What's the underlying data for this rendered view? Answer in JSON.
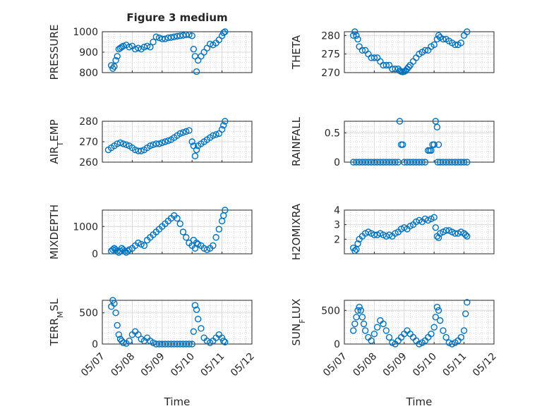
{
  "figure": {
    "title": "Figure 3 medium",
    "marker_color": "#0072BD",
    "xlabel": "Time",
    "x_ticks": [
      "05/07",
      "05/08",
      "05/09",
      "05/10",
      "05/11",
      "05/12"
    ]
  },
  "chart_data": [
    {
      "type": "scatter",
      "ylabel": "PRESSURE",
      "xlim": [
        0,
        5
      ],
      "ylim": [
        800,
        1000
      ],
      "yticks": [
        800,
        900,
        1000
      ],
      "grid": true,
      "x": [
        0.3,
        0.35,
        0.4,
        0.45,
        0.5,
        0.55,
        0.6,
        0.65,
        0.7,
        0.8,
        0.9,
        1.0,
        1.1,
        1.2,
        1.3,
        1.4,
        1.5,
        1.6,
        1.7,
        1.8,
        1.9,
        2.0,
        2.1,
        2.2,
        2.3,
        2.4,
        2.5,
        2.6,
        2.7,
        2.8,
        2.9,
        3.0,
        3.05,
        3.1,
        3.15,
        3.2,
        3.3,
        3.4,
        3.5,
        3.6,
        3.7,
        3.8,
        3.9,
        4.0,
        4.05,
        4.1
      ],
      "y": [
        835,
        820,
        830,
        860,
        880,
        915,
        920,
        925,
        930,
        935,
        925,
        930,
        915,
        920,
        915,
        925,
        930,
        925,
        950,
        975,
        970,
        965,
        965,
        970,
        972,
        975,
        978,
        980,
        982,
        985,
        985,
        980,
        915,
        880,
        805,
        860,
        880,
        900,
        920,
        940,
        935,
        945,
        960,
        980,
        995,
        1000
      ]
    },
    {
      "type": "scatter",
      "ylabel": "THETA",
      "xlim": [
        0,
        5
      ],
      "ylim": [
        270,
        281
      ],
      "yticks": [
        270,
        275,
        280
      ],
      "grid": true,
      "x": [
        0.3,
        0.35,
        0.4,
        0.45,
        0.5,
        0.6,
        0.7,
        0.8,
        0.9,
        1.0,
        1.1,
        1.2,
        1.3,
        1.4,
        1.5,
        1.6,
        1.7,
        1.8,
        1.85,
        1.9,
        1.95,
        2.0,
        2.05,
        2.1,
        2.15,
        2.2,
        2.3,
        2.4,
        2.5,
        2.6,
        2.7,
        2.8,
        2.9,
        3.0,
        3.1,
        3.15,
        3.2,
        3.3,
        3.4,
        3.5,
        3.6,
        3.7,
        3.8,
        3.9,
        4.0,
        4.1
      ],
      "y": [
        280,
        281,
        280,
        279,
        277,
        276,
        276,
        275,
        274,
        274,
        274,
        273,
        272,
        272,
        272,
        271,
        271,
        271,
        270.5,
        270.3,
        270.2,
        270.3,
        270.5,
        271,
        271.5,
        272,
        273,
        274,
        275,
        275.5,
        276,
        276,
        277,
        277.5,
        279,
        280,
        279.5,
        279,
        279,
        278.5,
        278,
        277.5,
        277.5,
        278,
        280,
        281
      ]
    },
    {
      "type": "scatter",
      "ylabel": "AIR_TEMP",
      "xlim": [
        0,
        5
      ],
      "ylim": [
        260,
        280
      ],
      "yticks": [
        260,
        270,
        280
      ],
      "grid": true,
      "x": [
        0.2,
        0.3,
        0.4,
        0.5,
        0.6,
        0.7,
        0.8,
        0.9,
        1.0,
        1.1,
        1.2,
        1.3,
        1.4,
        1.5,
        1.6,
        1.7,
        1.8,
        1.9,
        2.0,
        2.1,
        2.2,
        2.3,
        2.4,
        2.5,
        2.6,
        2.7,
        2.8,
        2.9,
        3.0,
        3.05,
        3.1,
        3.15,
        3.2,
        3.3,
        3.4,
        3.5,
        3.6,
        3.7,
        3.8,
        3.9,
        4.0,
        4.05,
        4.1
      ],
      "y": [
        266,
        267,
        268,
        269,
        269.5,
        269,
        268.5,
        268,
        267,
        266,
        265.5,
        265.5,
        266,
        267,
        268,
        268.5,
        269,
        269,
        269.5,
        270,
        270.5,
        271,
        272,
        273,
        274,
        274.5,
        275,
        275.5,
        270,
        268,
        263,
        266,
        268,
        269,
        270,
        271,
        272,
        273,
        273.5,
        274,
        276,
        278,
        280
      ]
    },
    {
      "type": "scatter",
      "ylabel": "RAINFALL",
      "xlim": [
        0,
        5
      ],
      "ylim": [
        0,
        0.7
      ],
      "yticks": [
        0,
        0.5
      ],
      "grid": true,
      "x": [
        0.3,
        0.4,
        0.5,
        0.6,
        0.7,
        0.8,
        0.9,
        1.0,
        1.1,
        1.2,
        1.3,
        1.4,
        1.5,
        1.6,
        1.7,
        1.8,
        1.85,
        1.9,
        1.95,
        2.0,
        2.1,
        2.2,
        2.3,
        2.4,
        2.5,
        2.6,
        2.7,
        2.8,
        2.85,
        2.9,
        2.95,
        3.0,
        3.05,
        3.1,
        3.12,
        3.15,
        3.2,
        3.3,
        3.4,
        3.5,
        3.6,
        3.7,
        3.8,
        3.9,
        4.0,
        4.1
      ],
      "y": [
        0,
        0,
        0,
        0,
        0,
        0,
        0,
        0,
        0,
        0,
        0,
        0,
        0,
        0,
        0,
        0,
        0.7,
        0.3,
        0.3,
        0,
        0,
        0,
        0,
        0,
        0,
        0,
        0,
        0.2,
        0.2,
        0.2,
        0.3,
        0.3,
        0.7,
        0.6,
        0,
        0.3,
        0,
        0,
        0,
        0,
        0,
        0,
        0,
        0,
        0,
        0
      ]
    },
    {
      "type": "scatter",
      "ylabel": "MIXDEPTH",
      "xlim": [
        0,
        5
      ],
      "ylim": [
        0,
        1600
      ],
      "yticks": [
        0,
        1000
      ],
      "grid": true,
      "x": [
        0.3,
        0.35,
        0.4,
        0.45,
        0.5,
        0.55,
        0.6,
        0.65,
        0.7,
        0.75,
        0.8,
        0.85,
        0.9,
        1.0,
        1.1,
        1.2,
        1.3,
        1.4,
        1.5,
        1.6,
        1.7,
        1.8,
        1.9,
        2.0,
        2.1,
        2.2,
        2.3,
        2.4,
        2.5,
        2.6,
        2.7,
        2.8,
        2.9,
        3.0,
        3.05,
        3.1,
        3.15,
        3.2,
        3.3,
        3.4,
        3.5,
        3.6,
        3.7,
        3.8,
        3.9,
        4.0,
        4.05,
        4.1
      ],
      "y": [
        100,
        150,
        200,
        150,
        100,
        50,
        100,
        200,
        150,
        100,
        50,
        100,
        150,
        200,
        300,
        400,
        350,
        300,
        500,
        600,
        700,
        800,
        900,
        1000,
        1100,
        1200,
        1300,
        1400,
        1300,
        1100,
        800,
        600,
        400,
        300,
        500,
        200,
        400,
        350,
        300,
        200,
        150,
        200,
        300,
        600,
        900,
        1200,
        1400,
        1600
      ]
    },
    {
      "type": "scatter",
      "ylabel": "H2OMIXRA",
      "xlim": [
        0,
        5
      ],
      "ylim": [
        1,
        4
      ],
      "yticks": [
        2,
        3,
        4
      ],
      "grid": true,
      "x": [
        0.3,
        0.35,
        0.4,
        0.45,
        0.5,
        0.6,
        0.7,
        0.8,
        0.9,
        1.0,
        1.1,
        1.2,
        1.3,
        1.4,
        1.5,
        1.6,
        1.7,
        1.8,
        1.9,
        2.0,
        2.1,
        2.2,
        2.3,
        2.4,
        2.5,
        2.6,
        2.7,
        2.8,
        2.9,
        3.0,
        3.05,
        3.1,
        3.15,
        3.2,
        3.3,
        3.4,
        3.5,
        3.6,
        3.7,
        3.8,
        3.9,
        4.0,
        4.05,
        4.1
      ],
      "y": [
        1.4,
        1.2,
        1.3,
        1.7,
        2.0,
        2.2,
        2.4,
        2.5,
        2.4,
        2.3,
        2.3,
        2.4,
        2.3,
        2.2,
        2.3,
        2.2,
        2.4,
        2.5,
        2.7,
        2.8,
        2.7,
        2.9,
        3.0,
        3.2,
        3.3,
        3.2,
        3.4,
        3.3,
        3.4,
        3.5,
        2.8,
        2.2,
        2.1,
        2.4,
        2.5,
        2.6,
        2.6,
        2.5,
        2.4,
        2.4,
        2.5,
        2.4,
        2.3,
        2.2
      ]
    },
    {
      "type": "scatter",
      "ylabel": "TERR_MSL",
      "xlim": [
        0,
        5
      ],
      "ylim": [
        0,
        700
      ],
      "yticks": [
        0,
        500
      ],
      "grid": true,
      "x": [
        0.3,
        0.35,
        0.4,
        0.45,
        0.5,
        0.55,
        0.6,
        0.65,
        0.7,
        0.8,
        0.9,
        1.0,
        1.1,
        1.2,
        1.3,
        1.4,
        1.5,
        1.6,
        1.7,
        1.8,
        1.9,
        2.0,
        2.1,
        2.2,
        2.3,
        2.4,
        2.5,
        2.6,
        2.7,
        2.8,
        2.9,
        3.0,
        3.05,
        3.1,
        3.15,
        3.2,
        3.3,
        3.4,
        3.5,
        3.6,
        3.7,
        3.8,
        3.9,
        4.0,
        4.05,
        4.1
      ],
      "y": [
        600,
        700,
        650,
        500,
        300,
        150,
        80,
        50,
        20,
        10,
        50,
        150,
        200,
        150,
        80,
        50,
        100,
        50,
        20,
        0,
        0,
        0,
        0,
        0,
        0,
        0,
        0,
        0,
        0,
        0,
        0,
        0,
        200,
        620,
        550,
        400,
        250,
        100,
        50,
        20,
        50,
        100,
        150,
        100,
        50,
        30
      ]
    },
    {
      "type": "scatter",
      "ylabel": "SUN_FLUX",
      "xlim": [
        0,
        5
      ],
      "ylim": [
        0,
        650
      ],
      "yticks": [
        0,
        500
      ],
      "grid": true,
      "x": [
        0.3,
        0.35,
        0.4,
        0.45,
        0.5,
        0.55,
        0.6,
        0.65,
        0.7,
        0.8,
        0.9,
        1.0,
        1.1,
        1.2,
        1.3,
        1.4,
        1.5,
        1.6,
        1.7,
        1.8,
        1.9,
        2.0,
        2.1,
        2.2,
        2.3,
        2.4,
        2.5,
        2.6,
        2.7,
        2.8,
        2.9,
        3.0,
        3.05,
        3.1,
        3.15,
        3.2,
        3.3,
        3.4,
        3.5,
        3.6,
        3.7,
        3.8,
        3.9,
        4.0,
        4.05,
        4.1
      ],
      "y": [
        200,
        300,
        400,
        500,
        550,
        500,
        400,
        300,
        200,
        100,
        50,
        150,
        250,
        350,
        300,
        200,
        100,
        20,
        0,
        50,
        100,
        150,
        200,
        150,
        100,
        50,
        0,
        20,
        50,
        100,
        150,
        250,
        400,
        550,
        500,
        350,
        200,
        100,
        20,
        0,
        20,
        50,
        100,
        200,
        450,
        620
      ]
    }
  ]
}
